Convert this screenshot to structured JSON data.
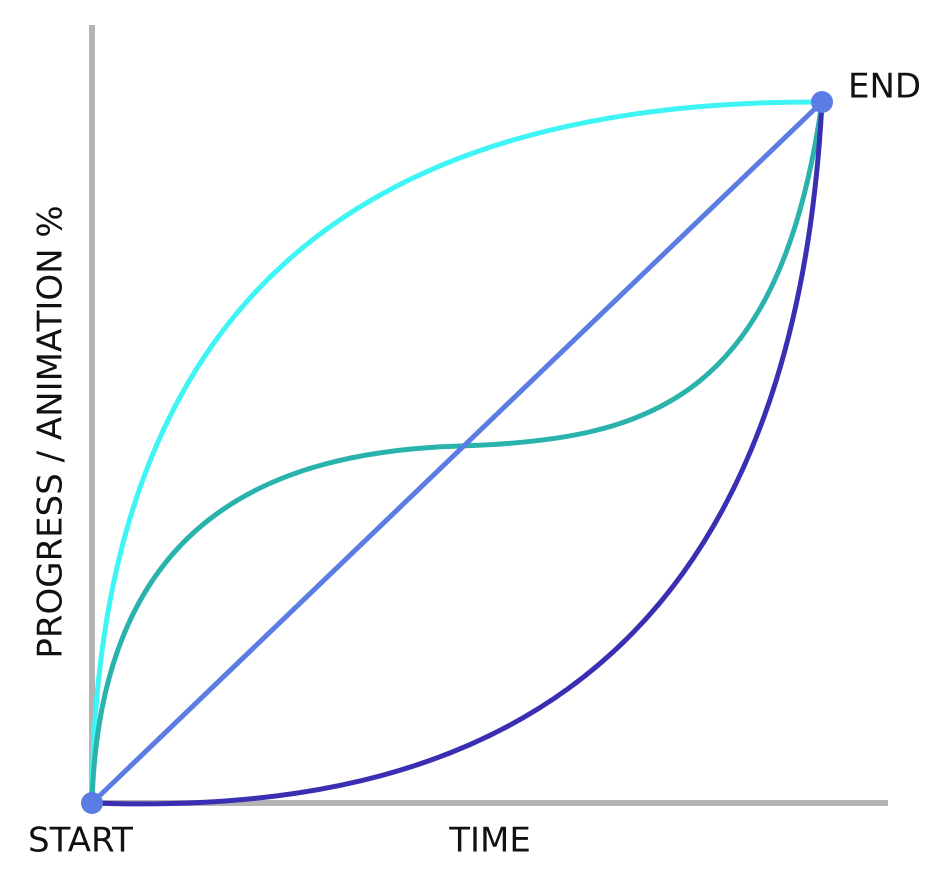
{
  "labels": {
    "end": "END",
    "start": "START",
    "x_axis": "TIME",
    "y_axis": "PROGRESS / ANIMATION %"
  }
}
